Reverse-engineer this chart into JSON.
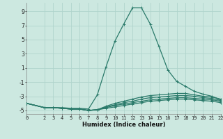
{
  "xlabel": "Humidex (Indice chaleur)",
  "bg_color": "#cce8e0",
  "grid_color": "#b0d4cc",
  "line_color": "#2a7a6a",
  "xlim": [
    0,
    22
  ],
  "ylim": [
    -5.5,
    10.2
  ],
  "yticks": [
    -5,
    -3,
    -1,
    1,
    3,
    5,
    7,
    9
  ],
  "xticks": [
    0,
    2,
    3,
    4,
    5,
    6,
    7,
    8,
    9,
    10,
    11,
    12,
    13,
    14,
    15,
    16,
    17,
    18,
    19,
    20,
    21,
    22
  ],
  "lines": [
    {
      "x": [
        0,
        2,
        3,
        4,
        5,
        6,
        7,
        8,
        9,
        10,
        11,
        12,
        13,
        14,
        15,
        16,
        17,
        18,
        19,
        20,
        21,
        22
      ],
      "y": [
        -4.0,
        -4.6,
        -4.6,
        -4.6,
        -4.7,
        -4.7,
        -4.8,
        -2.8,
        1.2,
        4.8,
        7.2,
        9.5,
        9.5,
        7.2,
        4.0,
        0.7,
        -0.9,
        -1.6,
        -2.3,
        -2.7,
        -3.0,
        -3.5
      ]
    },
    {
      "x": [
        0,
        2,
        3,
        4,
        5,
        6,
        7,
        8,
        9,
        10,
        11,
        12,
        13,
        14,
        15,
        16,
        17,
        18,
        19,
        20,
        21,
        22
      ],
      "y": [
        -4.0,
        -4.6,
        -4.6,
        -4.7,
        -4.8,
        -4.8,
        -5.0,
        -4.9,
        -4.4,
        -4.0,
        -3.7,
        -3.4,
        -3.1,
        -2.9,
        -2.8,
        -2.7,
        -2.6,
        -2.6,
        -2.8,
        -3.0,
        -3.1,
        -3.4
      ]
    },
    {
      "x": [
        0,
        2,
        3,
        4,
        5,
        6,
        7,
        8,
        9,
        10,
        11,
        12,
        13,
        14,
        15,
        16,
        17,
        18,
        19,
        20,
        21,
        22
      ],
      "y": [
        -4.0,
        -4.6,
        -4.6,
        -4.7,
        -4.8,
        -4.8,
        -5.0,
        -4.9,
        -4.5,
        -4.2,
        -3.9,
        -3.7,
        -3.4,
        -3.2,
        -3.1,
        -3.0,
        -2.9,
        -2.9,
        -3.0,
        -3.2,
        -3.3,
        -3.6
      ]
    },
    {
      "x": [
        0,
        2,
        3,
        4,
        5,
        6,
        7,
        8,
        9,
        10,
        11,
        12,
        13,
        14,
        15,
        16,
        17,
        18,
        19,
        20,
        21,
        22
      ],
      "y": [
        -4.0,
        -4.6,
        -4.6,
        -4.7,
        -4.8,
        -4.8,
        -5.0,
        -4.9,
        -4.6,
        -4.3,
        -4.1,
        -3.9,
        -3.7,
        -3.5,
        -3.4,
        -3.3,
        -3.2,
        -3.2,
        -3.3,
        -3.4,
        -3.5,
        -3.7
      ]
    },
    {
      "x": [
        0,
        2,
        3,
        4,
        5,
        6,
        7,
        8,
        9,
        10,
        11,
        12,
        13,
        14,
        15,
        16,
        17,
        18,
        19,
        20,
        21,
        22
      ],
      "y": [
        -4.0,
        -4.6,
        -4.6,
        -4.7,
        -4.8,
        -4.8,
        -5.0,
        -4.9,
        -4.7,
        -4.5,
        -4.3,
        -4.1,
        -3.9,
        -3.7,
        -3.6,
        -3.5,
        -3.4,
        -3.4,
        -3.5,
        -3.6,
        -3.7,
        -3.9
      ]
    }
  ],
  "marker": "+",
  "markersize": 3.5,
  "linewidth": 0.9
}
